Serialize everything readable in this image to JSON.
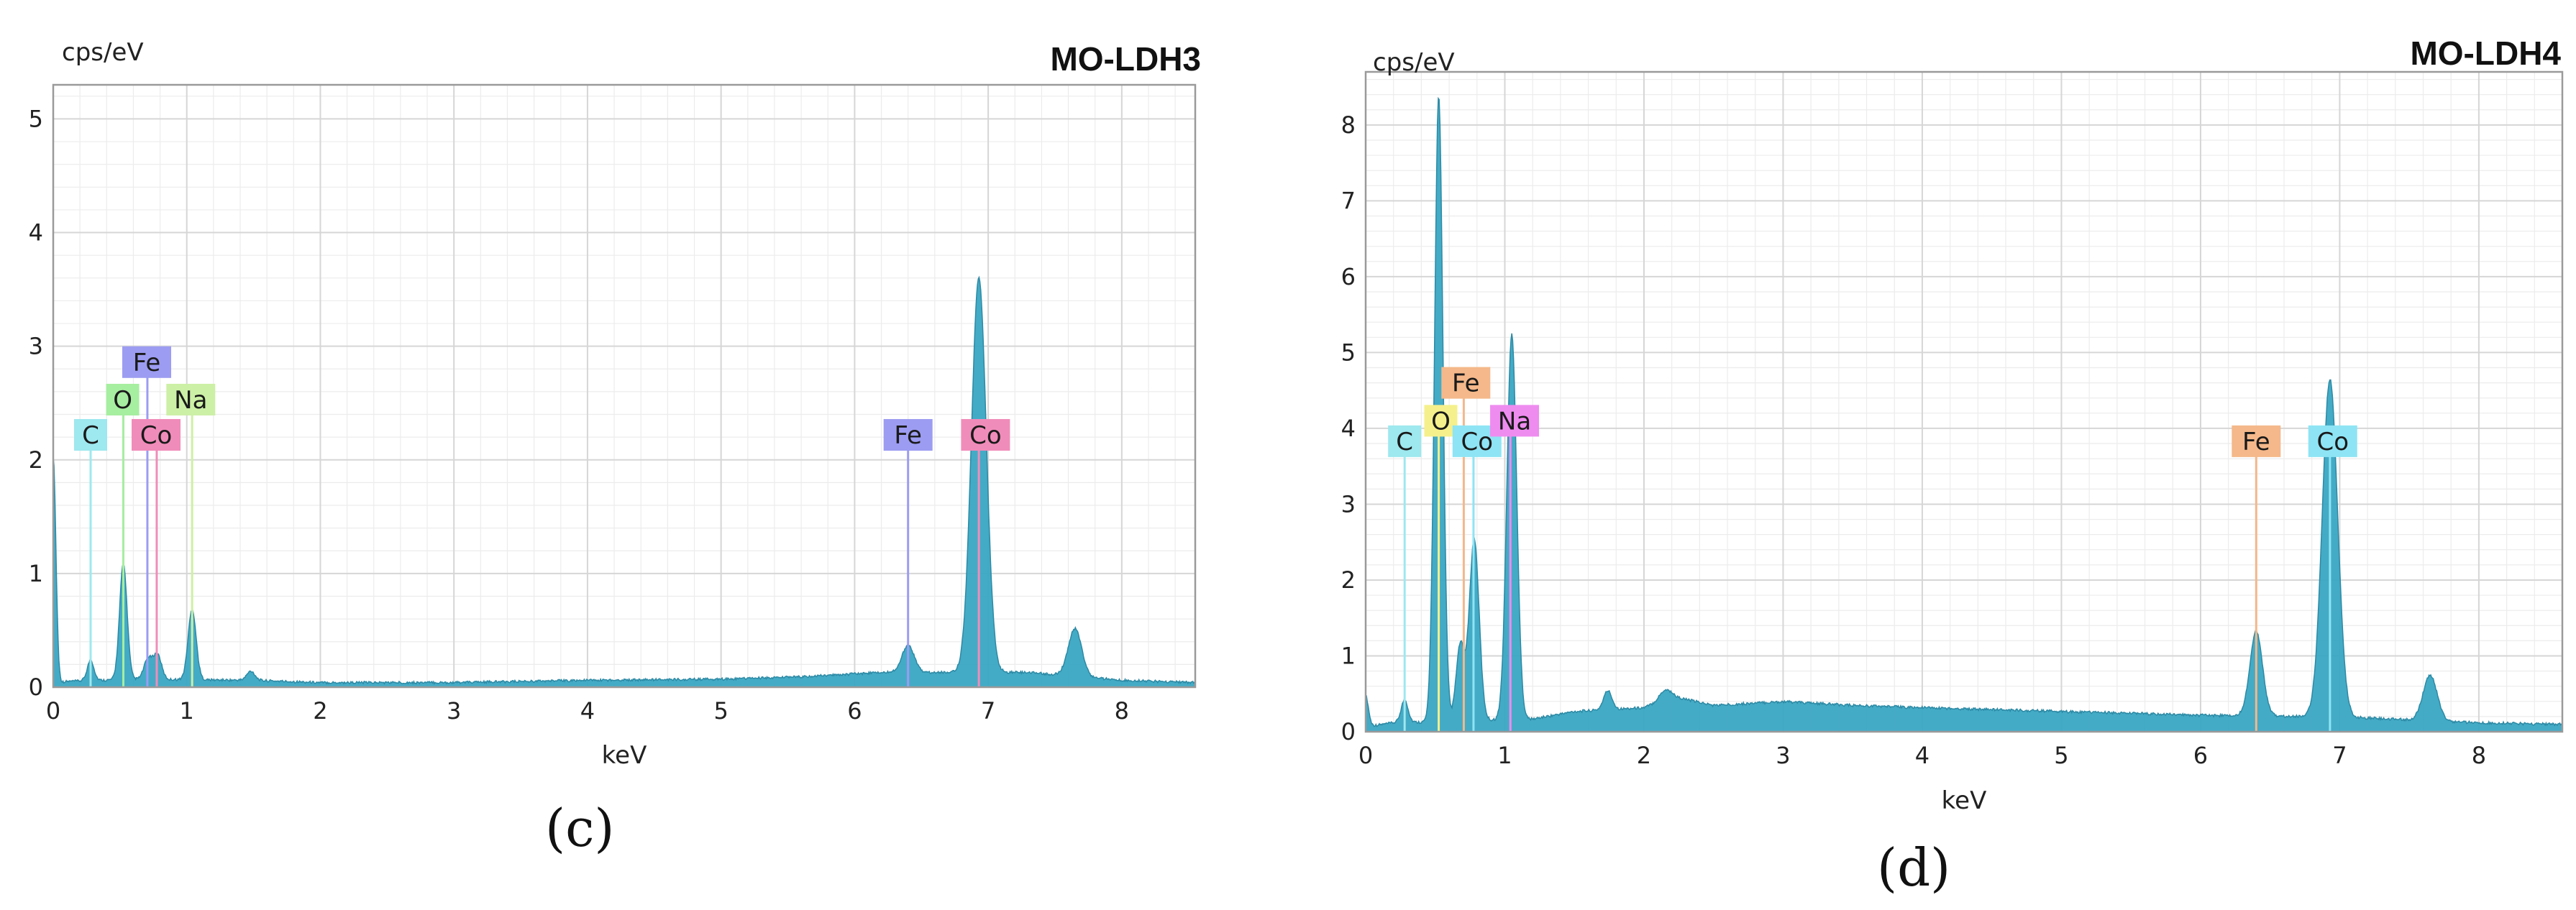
{
  "colors": {
    "spectrum_fill": "#3aa6c3",
    "spectrum_edge": "#2c8aa5",
    "grid": "#d6d6d6",
    "frame": "#9a9a9a",
    "C": "#9ee8ef",
    "O": "#a6eea0",
    "Fe_c": "#9c9cf2",
    "Na_c": "#ccf0a6",
    "Co_c": "#f08cba",
    "Fe_d": "#f4b88a",
    "O_d": "#f5f08c",
    "Na_d": "#ee8cf0",
    "Co_d": "#8ee4f4"
  },
  "captions": {
    "c": "(c)",
    "d": "(d)"
  },
  "chart_data": [
    {
      "id": "c",
      "type": "area",
      "title": "MO-LDH3",
      "xlabel": "keV",
      "ylabel": "cps/eV",
      "xlim": [
        0,
        8.55
      ],
      "ylim": [
        0,
        5.3
      ],
      "x_ticks": [
        0,
        1,
        2,
        3,
        4,
        5,
        6,
        7,
        8
      ],
      "y_ticks": [
        0,
        1,
        2,
        3,
        4,
        5
      ],
      "grid": true,
      "baseline": [
        [
          0,
          0.02
        ],
        [
          0.1,
          0.04
        ],
        [
          0.6,
          0.06
        ],
        [
          1.5,
          0.05
        ],
        [
          2.0,
          0.03
        ],
        [
          3.0,
          0.03
        ],
        [
          4.0,
          0.05
        ],
        [
          5.0,
          0.06
        ],
        [
          5.6,
          0.08
        ],
        [
          6.2,
          0.12
        ],
        [
          7.3,
          0.12
        ],
        [
          8.0,
          0.05
        ],
        [
          8.55,
          0.03
        ]
      ],
      "peaks": [
        {
          "center": 0.0,
          "height": 2.0,
          "width": 0.02
        },
        {
          "center": 0.28,
          "height": 0.18,
          "width": 0.025
        },
        {
          "center": 0.525,
          "height": 1.02,
          "width": 0.028
        },
        {
          "center": 0.71,
          "height": 0.18,
          "width": 0.03
        },
        {
          "center": 0.78,
          "height": 0.22,
          "width": 0.03
        },
        {
          "center": 1.04,
          "height": 0.62,
          "width": 0.03
        },
        {
          "center": 1.48,
          "height": 0.08,
          "width": 0.03
        },
        {
          "center": 6.4,
          "height": 0.24,
          "width": 0.045
        },
        {
          "center": 6.93,
          "height": 3.48,
          "width": 0.055
        },
        {
          "center": 7.65,
          "height": 0.42,
          "width": 0.05
        }
      ],
      "markers": [
        {
          "element": "C",
          "x": 0.28,
          "top": 2.2,
          "color_key": "C"
        },
        {
          "element": "O",
          "x": 0.525,
          "top": 2.52,
          "color_key": "O"
        },
        {
          "element": "Fe",
          "x": 0.705,
          "top": 2.85,
          "color_key": "Fe_c"
        },
        {
          "element": "Na",
          "x": 1.04,
          "top": 2.52,
          "color_key": "Na_c"
        },
        {
          "element": "Co",
          "x": 0.775,
          "top": 2.2,
          "color_key": "Co_c"
        },
        {
          "element": "Fe",
          "x": 6.4,
          "top": 2.2,
          "color_key": "Fe_c"
        },
        {
          "element": "Co",
          "x": 6.93,
          "top": 2.2,
          "color_key": "Co_c"
        }
      ],
      "labels": [
        {
          "text": "C",
          "x": 0.28,
          "y": 2.22,
          "color_key": "C"
        },
        {
          "text": "O",
          "x": 0.52,
          "y": 2.53,
          "color_key": "O"
        },
        {
          "text": "Fe",
          "x": 0.7,
          "y": 2.86,
          "color_key": "Fe_c"
        },
        {
          "text": "Na",
          "x": 1.03,
          "y": 2.53,
          "color_key": "Na_c"
        },
        {
          "text": "Co",
          "x": 0.77,
          "y": 2.22,
          "color_key": "Co_c"
        },
        {
          "text": "Fe",
          "x": 6.4,
          "y": 2.22,
          "color_key": "Fe_c"
        },
        {
          "text": "Co",
          "x": 6.98,
          "y": 2.22,
          "color_key": "Co_c"
        }
      ]
    },
    {
      "id": "d",
      "type": "area",
      "title": "MO-LDH4",
      "xlabel": "keV",
      "ylabel": "cps/eV",
      "xlim": [
        0,
        8.6
      ],
      "ylim": [
        0,
        8.7
      ],
      "x_ticks": [
        0,
        1,
        2,
        3,
        4,
        5,
        6,
        7,
        8
      ],
      "y_ticks": [
        0,
        1,
        2,
        3,
        4,
        5,
        6,
        7,
        8
      ],
      "grid": true,
      "baseline": [
        [
          0,
          0.05
        ],
        [
          0.2,
          0.1
        ],
        [
          1.2,
          0.15
        ],
        [
          1.5,
          0.25
        ],
        [
          2.0,
          0.3
        ],
        [
          2.2,
          0.45
        ],
        [
          2.5,
          0.33
        ],
        [
          3.0,
          0.38
        ],
        [
          3.5,
          0.33
        ],
        [
          4.0,
          0.3
        ],
        [
          5.0,
          0.25
        ],
        [
          6.0,
          0.2
        ],
        [
          7.0,
          0.18
        ],
        [
          8.0,
          0.1
        ],
        [
          8.6,
          0.08
        ]
      ],
      "peaks": [
        {
          "center": 0.0,
          "height": 0.4,
          "width": 0.02
        },
        {
          "center": 0.28,
          "height": 0.3,
          "width": 0.025
        },
        {
          "center": 0.525,
          "height": 8.25,
          "width": 0.03
        },
        {
          "center": 0.68,
          "height": 1.0,
          "width": 0.03
        },
        {
          "center": 0.78,
          "height": 2.4,
          "width": 0.035
        },
        {
          "center": 1.05,
          "height": 5.1,
          "width": 0.035
        },
        {
          "center": 1.74,
          "height": 0.25,
          "width": 0.03
        },
        {
          "center": 2.15,
          "height": 0.12,
          "width": 0.04
        },
        {
          "center": 6.4,
          "height": 1.12,
          "width": 0.045
        },
        {
          "center": 6.93,
          "height": 4.45,
          "width": 0.055
        },
        {
          "center": 7.65,
          "height": 0.6,
          "width": 0.05
        }
      ],
      "markers": [
        {
          "element": "C",
          "x": 0.28,
          "top": 3.8,
          "color_key": "C"
        },
        {
          "element": "O",
          "x": 0.525,
          "top": 4.0,
          "color_key": "O_d"
        },
        {
          "element": "Fe",
          "x": 0.705,
          "top": 4.5,
          "color_key": "Fe_d"
        },
        {
          "element": "Co",
          "x": 0.775,
          "top": 3.8,
          "color_key": "Co_d"
        },
        {
          "element": "Na",
          "x": 1.04,
          "top": 4.0,
          "color_key": "Na_d"
        },
        {
          "element": "Fe",
          "x": 6.4,
          "top": 3.8,
          "color_key": "Fe_d"
        },
        {
          "element": "Co",
          "x": 6.93,
          "top": 3.8,
          "color_key": "Co_d"
        }
      ],
      "labels": [
        {
          "text": "C",
          "x": 0.28,
          "y": 3.83,
          "color_key": "C"
        },
        {
          "text": "O",
          "x": 0.54,
          "y": 4.1,
          "color_key": "O_d"
        },
        {
          "text": "Fe",
          "x": 0.72,
          "y": 4.6,
          "color_key": "Fe_d"
        },
        {
          "text": "Co",
          "x": 0.8,
          "y": 3.83,
          "color_key": "Co_d"
        },
        {
          "text": "Na",
          "x": 1.07,
          "y": 4.1,
          "color_key": "Na_d"
        },
        {
          "text": "Fe",
          "x": 6.4,
          "y": 3.83,
          "color_key": "Fe_d"
        },
        {
          "text": "Co",
          "x": 6.95,
          "y": 3.83,
          "color_key": "Co_d"
        }
      ]
    }
  ]
}
